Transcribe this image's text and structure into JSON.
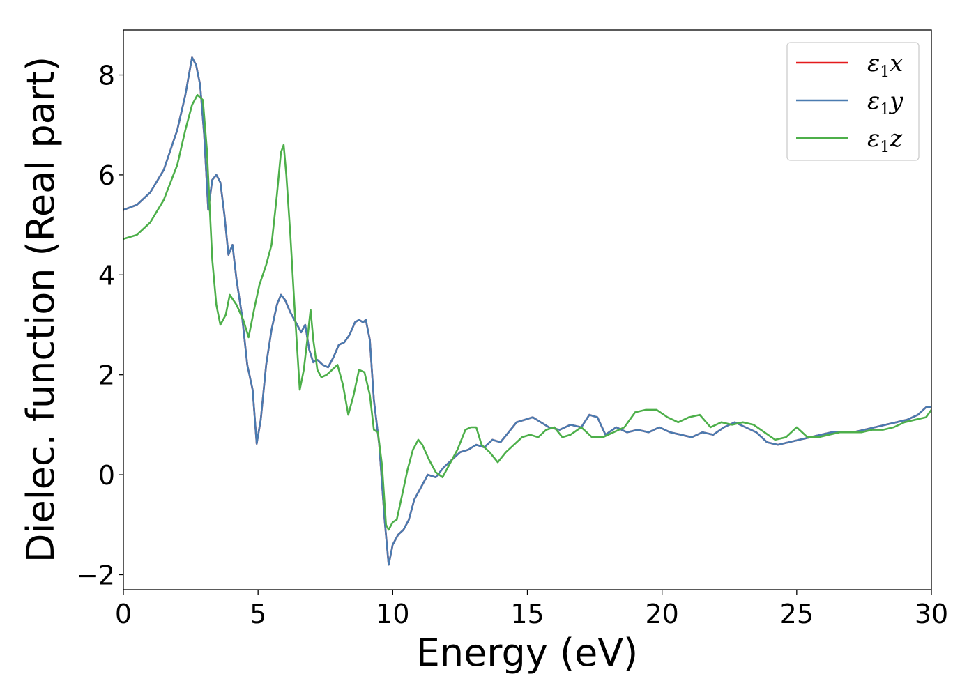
{
  "chart_data": {
    "type": "line",
    "title": "",
    "xlabel": "Energy (eV)",
    "ylabel": "Dielec. function (Real part)",
    "xlim": [
      0,
      30
    ],
    "ylim": [
      -2.3,
      8.9
    ],
    "xticks": [
      0,
      5,
      10,
      15,
      20,
      25,
      30
    ],
    "xtick_labels": [
      "0",
      "5",
      "10",
      "15",
      "20",
      "25",
      "30"
    ],
    "yticks": [
      -2,
      0,
      2,
      4,
      6,
      8
    ],
    "ytick_labels": [
      "−2",
      "0",
      "2",
      "4",
      "6",
      "8"
    ],
    "grid": false,
    "legend_position": "top-right",
    "series": [
      {
        "name": "ε1x",
        "legend": {
          "symbol": "ε",
          "sub": "1",
          "axis": "x"
        },
        "color": "#e41a1c",
        "x": [
          0,
          0.5,
          1.0,
          1.5,
          2.0,
          2.3,
          2.55,
          2.7,
          2.85,
          3.0,
          3.15,
          3.3,
          3.45,
          3.6,
          3.75,
          3.9,
          4.05,
          4.2,
          4.4,
          4.6,
          4.8,
          4.95,
          5.1,
          5.3,
          5.5,
          5.7,
          5.85,
          6.0,
          6.2,
          6.4,
          6.6,
          6.75,
          6.9,
          7.05,
          7.2,
          7.4,
          7.6,
          7.8,
          8.0,
          8.2,
          8.4,
          8.6,
          8.75,
          8.9,
          9.0,
          9.15,
          9.3,
          9.5,
          9.7,
          9.85,
          10.0,
          10.2,
          10.4,
          10.6,
          10.8,
          11.0,
          11.3,
          11.6,
          11.9,
          12.2,
          12.5,
          12.8,
          13.1,
          13.4,
          13.7,
          14.0,
          14.3,
          14.6,
          14.9,
          15.2,
          15.5,
          15.8,
          16.2,
          16.6,
          17.0,
          17.3,
          17.6,
          17.9,
          18.3,
          18.7,
          19.1,
          19.5,
          19.9,
          20.3,
          20.7,
          21.1,
          21.5,
          21.9,
          22.3,
          22.7,
          23.1,
          23.5,
          23.9,
          24.3,
          24.7,
          25.1,
          25.5,
          25.9,
          26.3,
          26.7,
          27.1,
          27.5,
          27.9,
          28.3,
          28.7,
          29.1,
          29.5,
          29.8,
          30.0
        ],
        "y": [
          5.3,
          5.4,
          5.65,
          6.1,
          6.9,
          7.6,
          8.35,
          8.2,
          7.8,
          6.8,
          5.3,
          5.9,
          6.0,
          5.85,
          5.2,
          4.4,
          4.6,
          3.9,
          3.2,
          2.2,
          1.7,
          0.62,
          1.1,
          2.2,
          2.9,
          3.4,
          3.6,
          3.5,
          3.25,
          3.05,
          2.85,
          3.0,
          2.5,
          2.25,
          2.3,
          2.2,
          2.15,
          2.35,
          2.6,
          2.65,
          2.8,
          3.05,
          3.1,
          3.05,
          3.1,
          2.7,
          1.5,
          0.6,
          -0.9,
          -1.8,
          -1.4,
          -1.2,
          -1.1,
          -0.9,
          -0.5,
          -0.3,
          0.0,
          -0.05,
          0.15,
          0.3,
          0.45,
          0.5,
          0.6,
          0.55,
          0.7,
          0.65,
          0.85,
          1.05,
          1.1,
          1.15,
          1.05,
          0.95,
          0.9,
          1.0,
          0.95,
          1.2,
          1.15,
          0.8,
          0.95,
          0.85,
          0.9,
          0.85,
          0.95,
          0.85,
          0.8,
          0.75,
          0.85,
          0.8,
          0.95,
          1.05,
          0.95,
          0.85,
          0.65,
          0.6,
          0.65,
          0.7,
          0.75,
          0.8,
          0.85,
          0.85,
          0.85,
          0.9,
          0.95,
          1.0,
          1.05,
          1.1,
          1.2,
          1.35,
          1.35
        ]
      },
      {
        "name": "ε1y",
        "legend": {
          "symbol": "ε",
          "sub": "1",
          "axis": "y"
        },
        "color": "#4a7bb0",
        "x": [
          0,
          0.5,
          1.0,
          1.5,
          2.0,
          2.3,
          2.55,
          2.7,
          2.85,
          3.0,
          3.15,
          3.3,
          3.45,
          3.6,
          3.75,
          3.9,
          4.05,
          4.2,
          4.4,
          4.6,
          4.8,
          4.95,
          5.1,
          5.3,
          5.5,
          5.7,
          5.85,
          6.0,
          6.2,
          6.4,
          6.6,
          6.75,
          6.9,
          7.05,
          7.2,
          7.4,
          7.6,
          7.8,
          8.0,
          8.2,
          8.4,
          8.6,
          8.75,
          8.9,
          9.0,
          9.15,
          9.3,
          9.5,
          9.7,
          9.85,
          10.0,
          10.2,
          10.4,
          10.6,
          10.8,
          11.0,
          11.3,
          11.6,
          11.9,
          12.2,
          12.5,
          12.8,
          13.1,
          13.4,
          13.7,
          14.0,
          14.3,
          14.6,
          14.9,
          15.2,
          15.5,
          15.8,
          16.2,
          16.6,
          17.0,
          17.3,
          17.6,
          17.9,
          18.3,
          18.7,
          19.1,
          19.5,
          19.9,
          20.3,
          20.7,
          21.1,
          21.5,
          21.9,
          22.3,
          22.7,
          23.1,
          23.5,
          23.9,
          24.3,
          24.7,
          25.1,
          25.5,
          25.9,
          26.3,
          26.7,
          27.1,
          27.5,
          27.9,
          28.3,
          28.7,
          29.1,
          29.5,
          29.8,
          30.0
        ],
        "y": [
          5.3,
          5.4,
          5.65,
          6.1,
          6.9,
          7.6,
          8.35,
          8.2,
          7.8,
          6.8,
          5.3,
          5.9,
          6.0,
          5.85,
          5.2,
          4.4,
          4.6,
          3.9,
          3.2,
          2.2,
          1.7,
          0.62,
          1.1,
          2.2,
          2.9,
          3.4,
          3.6,
          3.5,
          3.25,
          3.05,
          2.85,
          3.0,
          2.5,
          2.25,
          2.3,
          2.2,
          2.15,
          2.35,
          2.6,
          2.65,
          2.8,
          3.05,
          3.1,
          3.05,
          3.1,
          2.7,
          1.5,
          0.6,
          -0.9,
          -1.8,
          -1.4,
          -1.2,
          -1.1,
          -0.9,
          -0.5,
          -0.3,
          0.0,
          -0.05,
          0.15,
          0.3,
          0.45,
          0.5,
          0.6,
          0.55,
          0.7,
          0.65,
          0.85,
          1.05,
          1.1,
          1.15,
          1.05,
          0.95,
          0.9,
          1.0,
          0.95,
          1.2,
          1.15,
          0.8,
          0.95,
          0.85,
          0.9,
          0.85,
          0.95,
          0.85,
          0.8,
          0.75,
          0.85,
          0.8,
          0.95,
          1.05,
          0.95,
          0.85,
          0.65,
          0.6,
          0.65,
          0.7,
          0.75,
          0.8,
          0.85,
          0.85,
          0.85,
          0.9,
          0.95,
          1.0,
          1.05,
          1.1,
          1.2,
          1.35,
          1.35
        ]
      },
      {
        "name": "ε1z",
        "legend": {
          "symbol": "ε",
          "sub": "1",
          "axis": "z"
        },
        "color": "#4daf4a",
        "x": [
          0,
          0.5,
          1.0,
          1.5,
          2.0,
          2.3,
          2.55,
          2.75,
          2.95,
          3.1,
          3.3,
          3.45,
          3.6,
          3.8,
          3.95,
          4.2,
          4.45,
          4.65,
          4.85,
          5.05,
          5.3,
          5.5,
          5.7,
          5.85,
          5.95,
          6.05,
          6.2,
          6.35,
          6.55,
          6.7,
          6.85,
          6.95,
          7.05,
          7.2,
          7.35,
          7.55,
          7.75,
          7.95,
          8.15,
          8.35,
          8.55,
          8.75,
          8.95,
          9.15,
          9.3,
          9.45,
          9.6,
          9.75,
          9.85,
          10.0,
          10.15,
          10.35,
          10.55,
          10.75,
          10.95,
          11.1,
          11.35,
          11.6,
          11.85,
          12.1,
          12.4,
          12.7,
          12.9,
          13.1,
          13.3,
          13.6,
          13.9,
          14.2,
          14.5,
          14.8,
          15.1,
          15.4,
          15.7,
          16.0,
          16.3,
          16.6,
          17.0,
          17.4,
          17.8,
          18.2,
          18.6,
          19.0,
          19.4,
          19.8,
          20.2,
          20.6,
          21.0,
          21.4,
          21.8,
          22.2,
          22.6,
          23.0,
          23.4,
          23.8,
          24.2,
          24.6,
          25.0,
          25.4,
          25.8,
          26.2,
          26.6,
          27.0,
          27.4,
          27.8,
          28.2,
          28.6,
          29.0,
          29.4,
          29.8,
          30.0
        ],
        "y": [
          4.72,
          4.8,
          5.05,
          5.5,
          6.2,
          6.9,
          7.4,
          7.6,
          7.5,
          6.5,
          4.3,
          3.4,
          3.0,
          3.2,
          3.6,
          3.4,
          3.1,
          2.75,
          3.3,
          3.8,
          4.2,
          4.6,
          5.6,
          6.45,
          6.6,
          6.0,
          4.8,
          3.4,
          1.7,
          2.1,
          2.8,
          3.3,
          2.7,
          2.1,
          1.95,
          2.0,
          2.1,
          2.2,
          1.8,
          1.2,
          1.6,
          2.1,
          2.05,
          1.6,
          0.9,
          0.85,
          0.2,
          -1.0,
          -1.1,
          -0.95,
          -0.9,
          -0.4,
          0.1,
          0.5,
          0.7,
          0.6,
          0.3,
          0.05,
          -0.05,
          0.2,
          0.5,
          0.9,
          0.95,
          0.95,
          0.6,
          0.45,
          0.25,
          0.45,
          0.6,
          0.75,
          0.8,
          0.75,
          0.9,
          0.95,
          0.75,
          0.8,
          0.95,
          0.75,
          0.75,
          0.85,
          0.95,
          1.25,
          1.3,
          1.3,
          1.15,
          1.05,
          1.15,
          1.2,
          0.95,
          1.05,
          1.0,
          1.05,
          1.0,
          0.85,
          0.7,
          0.75,
          0.95,
          0.75,
          0.75,
          0.8,
          0.85,
          0.85,
          0.85,
          0.9,
          0.9,
          0.95,
          1.05,
          1.1,
          1.15,
          1.3
        ]
      }
    ]
  }
}
